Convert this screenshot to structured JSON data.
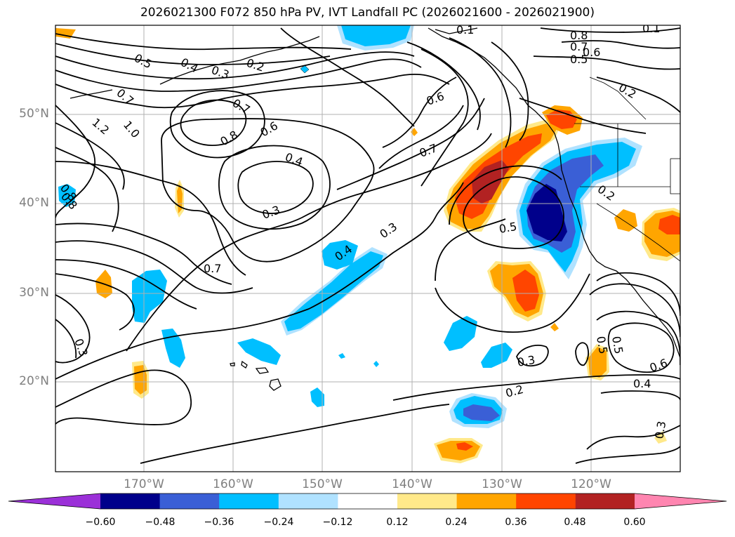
{
  "title": "2026021300 F072 850 hPa PV, IVT Landfall PC (2026021600 - 2026021900)",
  "lat_labels": [
    "50°N",
    "40°N",
    "30°N",
    "20°N"
  ],
  "lon_labels": [
    "170°W",
    "160°W",
    "150°W",
    "140°W",
    "130°W",
    "120°W"
  ],
  "contour_labels": [
    "0.5",
    "0.4",
    "0.3",
    "0.2",
    "0.1",
    "0.7",
    "1.2",
    "1.0",
    "0.8",
    "0.6",
    "0.7",
    "0.6",
    "0.8",
    "0.4",
    "0.3",
    "0.7",
    "0.4",
    "0.3",
    "0.7",
    "0.5",
    "0.2",
    "0.3",
    "0.2",
    "0.3",
    "0.5",
    "0.5",
    "0.6",
    "0.4",
    "0.3",
    "0.8",
    "0.7",
    "0.6",
    "0.5",
    "0.2",
    "0.1",
    "0.8"
  ],
  "colorbar": {
    "ticks": [
      "−0.60",
      "−0.48",
      "−0.36",
      "−0.24",
      "−0.12",
      "0.12",
      "0.24",
      "0.36",
      "0.48",
      "0.60"
    ],
    "colors": [
      "#9b30d8",
      "#00008b",
      "#3a5fd6",
      "#00bfff",
      "#b0e2ff",
      "#ffffff",
      "#ffe98a",
      "#ffa500",
      "#ff4500",
      "#b22222",
      "#ff85b0"
    ]
  },
  "field_colors": {
    "neg_light": "#b0e2ff",
    "neg_mid": "#00bfff",
    "neg_strong": "#3a5fd6",
    "neg_max": "#00008b",
    "pos_light": "#ffe98a",
    "pos_mid": "#ffa500",
    "pos_strong": "#ff4500",
    "pos_max": "#b22222"
  }
}
